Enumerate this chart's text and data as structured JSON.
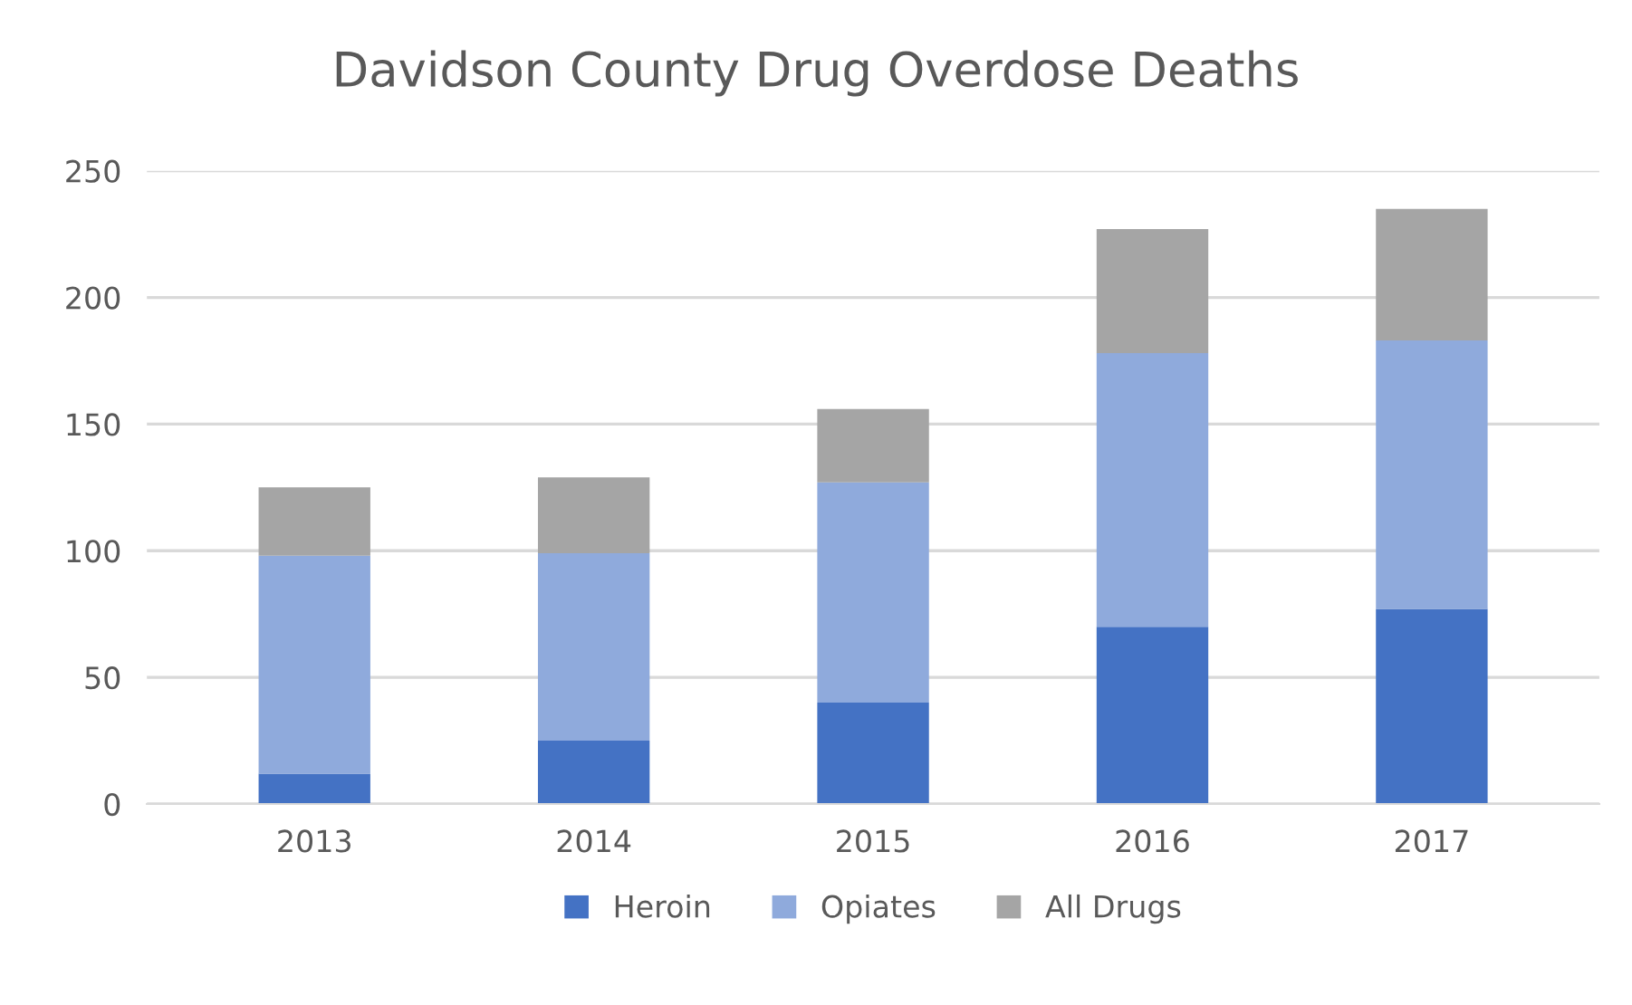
{
  "chart_data": {
    "type": "bar",
    "title": "Davidson County Drug Overdose Deaths",
    "stacked": true,
    "categories": [
      "2013",
      "2014",
      "2015",
      "2016",
      "2017"
    ],
    "series": [
      {
        "name": "Heroin",
        "color": "#4472c4",
        "values": [
          12,
          25,
          40,
          70,
          77
        ]
      },
      {
        "name": "Opiates",
        "color": "#8faadc",
        "values": [
          86,
          74,
          87,
          108,
          106
        ]
      },
      {
        "name": "All Drugs",
        "color": "#a5a5a5",
        "values": [
          27,
          30,
          29,
          49,
          52
        ]
      }
    ],
    "ylim": [
      0,
      250
    ],
    "yticks": [
      0,
      50,
      100,
      150,
      200,
      250
    ],
    "grid": "y",
    "legend": "bottom"
  }
}
